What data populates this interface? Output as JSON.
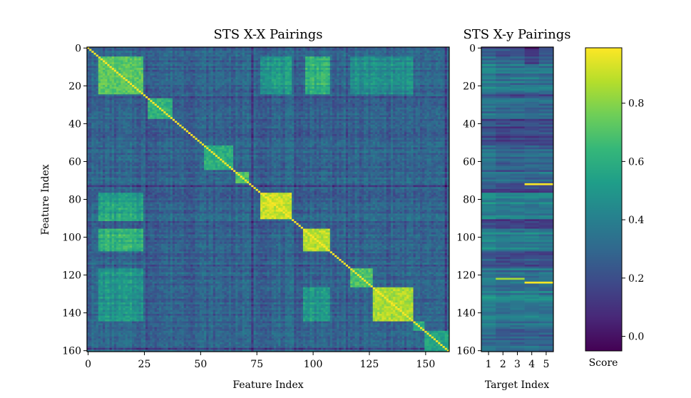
{
  "chart_data": [
    {
      "type": "heatmap",
      "title": "STS X-X Pairings",
      "xlabel": "Feature Index",
      "ylabel": "Feature Index",
      "xlim": [
        0,
        161
      ],
      "ylim": [
        161,
        0
      ],
      "xticks": [
        0,
        25,
        50,
        75,
        100,
        125,
        150
      ],
      "yticks": [
        0,
        20,
        40,
        60,
        80,
        100,
        120,
        140,
        160
      ],
      "n": 161,
      "diagonal": 1.0,
      "baseline": 0.28,
      "blocks": [
        {
          "start": 5,
          "end": 25,
          "value": 0.72
        },
        {
          "start": 27,
          "end": 38,
          "value": 0.62
        },
        {
          "start": 52,
          "end": 65,
          "value": 0.6
        },
        {
          "start": 66,
          "end": 72,
          "value": 0.7
        },
        {
          "start": 77,
          "end": 91,
          "value": 0.9
        },
        {
          "start": 96,
          "end": 108,
          "value": 0.88
        },
        {
          "start": 117,
          "end": 127,
          "value": 0.7
        },
        {
          "start": 127,
          "end": 145,
          "value": 0.86
        },
        {
          "start": 145,
          "end": 150,
          "value": 0.6
        },
        {
          "start": 150,
          "end": 161,
          "value": 0.55
        }
      ],
      "cross_blocks": [
        {
          "rows": [
            5,
            25
          ],
          "cols": [
            97,
            108
          ],
          "value": 0.62
        },
        {
          "rows": [
            96,
            108
          ],
          "cols": [
            5,
            25
          ],
          "value": 0.62
        },
        {
          "rows": [
            77,
            92
          ],
          "cols": [
            5,
            25
          ],
          "value": 0.55
        },
        {
          "rows": [
            5,
            25
          ],
          "cols": [
            77,
            91
          ],
          "value": 0.5
        },
        {
          "rows": [
            117,
            145
          ],
          "cols": [
            5,
            25
          ],
          "value": 0.48
        },
        {
          "rows": [
            5,
            25
          ],
          "cols": [
            117,
            145
          ],
          "value": 0.45
        },
        {
          "rows": [
            127,
            145
          ],
          "cols": [
            96,
            108
          ],
          "value": 0.5
        }
      ],
      "low_lines": [
        26,
        73,
        92,
        115,
        159
      ]
    },
    {
      "type": "heatmap",
      "title": "STS X-y Pairings",
      "xlabel": "Target Index",
      "ylabel": "",
      "categories": [
        "1",
        "2",
        "3",
        "4",
        "5"
      ],
      "yticks": [
        0,
        20,
        40,
        60,
        80,
        100,
        120,
        140,
        160
      ],
      "n_rows": 161,
      "highlights": [
        {
          "row": 72,
          "cols": [
            4,
            5
          ],
          "value": 0.98
        },
        {
          "row": 122,
          "cols": [
            2,
            3
          ],
          "value": 0.85
        },
        {
          "row": 124,
          "cols": [
            4,
            5
          ],
          "value": 0.99
        }
      ]
    }
  ],
  "colorbar": {
    "label": "Score",
    "min": -0.05,
    "max": 0.99,
    "ticks": [
      "0.0",
      "0.2",
      "0.4",
      "0.6",
      "0.8"
    ],
    "tick_values": [
      0.0,
      0.2,
      0.4,
      0.6,
      0.8
    ],
    "colormap": [
      "#440154",
      "#482878",
      "#3e4989",
      "#31688e",
      "#26828e",
      "#1f9e89",
      "#35b779",
      "#6ece58",
      "#b5de2b",
      "#fde725"
    ]
  }
}
